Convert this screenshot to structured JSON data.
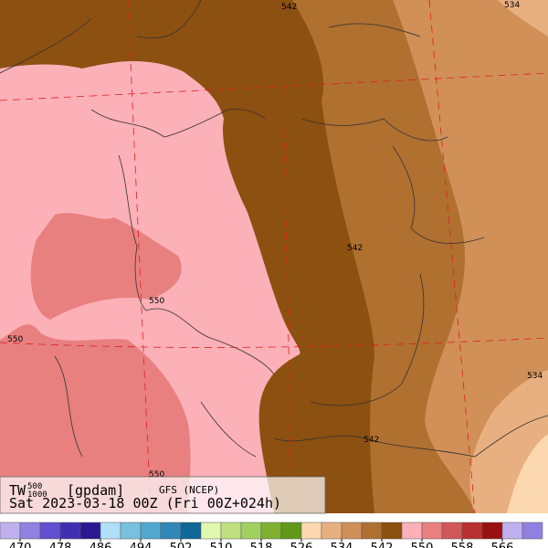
{
  "header": {
    "parameter": "TW",
    "upper_level": "500",
    "lower_level": "1000",
    "unit": "[gpdam]",
    "model": "GFS (NCEP)",
    "time": "Sat 2023-03-18 00Z (Fri 00Z+024h)"
  },
  "contour_labels": [
    "542",
    "534",
    "542",
    "550",
    "550",
    "534",
    "542",
    "550"
  ],
  "colorbar": {
    "colors": [
      "#c0b0f0",
      "#9080e0",
      "#6050d0",
      "#4030b0",
      "#2a1890",
      "#b0e0f8",
      "#78c0e0",
      "#50a8d0",
      "#3088b8",
      "#106898",
      "#e0f8b0",
      "#c0e080",
      "#a0d060",
      "#80b030",
      "#609818",
      "#fcd8b0",
      "#e8b080",
      "#d09058",
      "#b07030",
      "#8c5010",
      "#fcb0b8",
      "#e88080",
      "#d05858",
      "#b83030",
      "#981010",
      "#c0b0f0",
      "#9080e0"
    ],
    "ticks": [
      470,
      478,
      486,
      494,
      502,
      510,
      518,
      526,
      534,
      542,
      550,
      558,
      566
    ]
  }
}
